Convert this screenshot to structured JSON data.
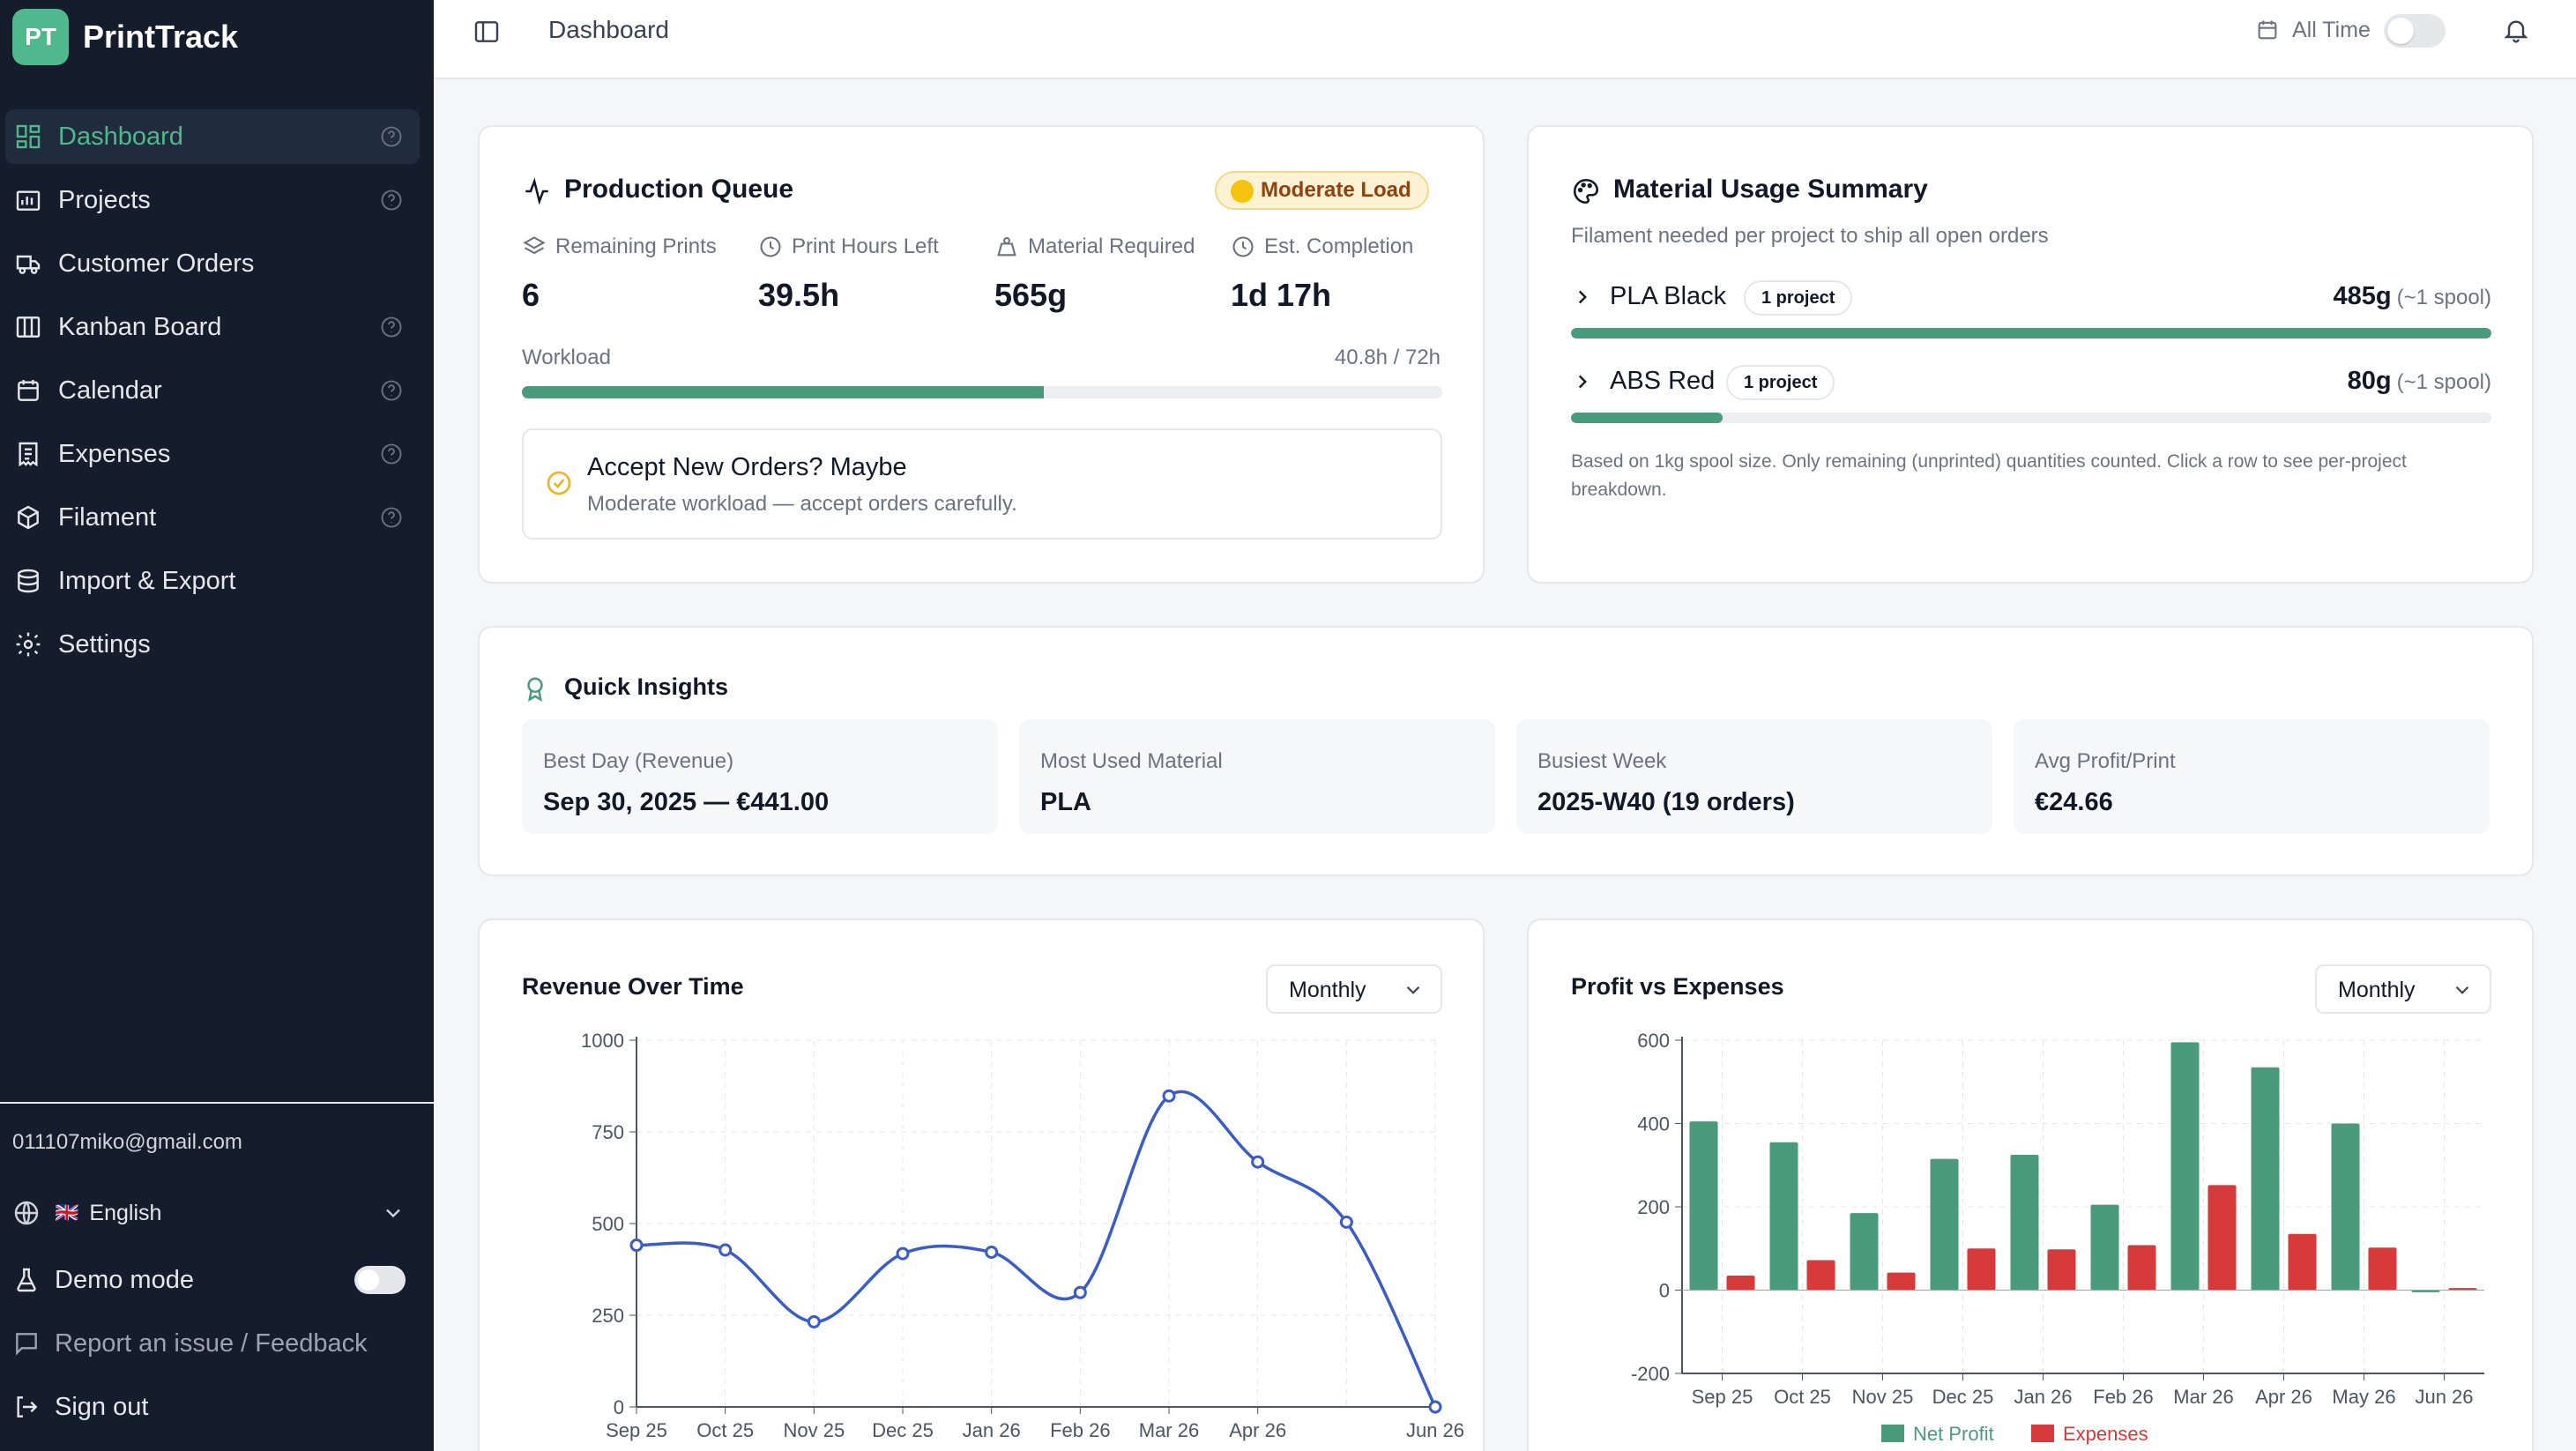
{
  "app": {
    "logo_initials": "PT",
    "name": "PrintTrack"
  },
  "sidebar": {
    "items": [
      {
        "label": "Dashboard",
        "icon": "dashboard-icon",
        "help": true,
        "active": true
      },
      {
        "label": "Projects",
        "icon": "projects-icon",
        "help": true
      },
      {
        "label": "Customer Orders",
        "icon": "truck-icon",
        "help": false
      },
      {
        "label": "Kanban Board",
        "icon": "kanban-icon",
        "help": true
      },
      {
        "label": "Calendar",
        "icon": "calendar-icon",
        "help": true
      },
      {
        "label": "Expenses",
        "icon": "receipt-icon",
        "help": true
      },
      {
        "label": "Filament",
        "icon": "box-icon",
        "help": true
      },
      {
        "label": "Import & Export",
        "icon": "database-icon",
        "help": false
      },
      {
        "label": "Settings",
        "icon": "gear-icon",
        "help": false
      }
    ],
    "email": "011107miko@gmail.com",
    "language": {
      "flag": "🇬🇧",
      "label": "English"
    },
    "demo_mode": {
      "label": "Demo mode",
      "enabled": false
    },
    "report": "Report an issue / Feedback",
    "sign_out": "Sign out"
  },
  "topbar": {
    "breadcrumb": "Dashboard",
    "range_label": "All Time",
    "range_toggle": false
  },
  "production_queue": {
    "title": "Production Queue",
    "load_badge": "Moderate Load",
    "stats": [
      {
        "label": "Remaining Prints",
        "value": "6",
        "icon": "layers-icon"
      },
      {
        "label": "Print Hours Left",
        "value": "39.5h",
        "icon": "clock-icon"
      },
      {
        "label": "Material Required",
        "value": "565g",
        "icon": "weight-icon"
      },
      {
        "label": "Est. Completion",
        "value": "1d 17h",
        "icon": "clock-icon"
      }
    ],
    "workload_label": "Workload",
    "workload_value": "40.8h / 72h",
    "workload_fraction": 0.567,
    "accept_title": "Accept New Orders? Maybe",
    "accept_desc": "Moderate workload — accept orders carefully."
  },
  "material_usage": {
    "title": "Material Usage Summary",
    "subtitle": "Filament needed per project to ship all open orders",
    "rows": [
      {
        "name": "PLA Black",
        "projects": "1 project",
        "amount": "485g",
        "spools": "(~1 spool)",
        "fraction": 1.0
      },
      {
        "name": "ABS Red",
        "projects": "1 project",
        "amount": "80g",
        "spools": "(~1 spool)",
        "fraction": 0.165
      }
    ],
    "footnote": "Based on 1kg spool size. Only remaining (unprinted) quantities counted. Click a row to see per-project breakdown."
  },
  "quick_insights": {
    "title": "Quick Insights",
    "items": [
      {
        "label": "Best Day (Revenue)",
        "value": "Sep 30, 2025 — €441.00"
      },
      {
        "label": "Most Used Material",
        "value": "PLA"
      },
      {
        "label": "Busiest Week",
        "value": "2025-W40 (19 orders)"
      },
      {
        "label": "Avg Profit/Print",
        "value": "€24.66"
      }
    ]
  },
  "revenue_chart": {
    "title": "Revenue Over Time",
    "period": "Monthly"
  },
  "profit_chart": {
    "title": "Profit vs Expenses",
    "period": "Monthly"
  },
  "colors": {
    "accent": "#4fb88c",
    "profit": "#4a9a7c",
    "expenses": "#d63a3a",
    "line": "#3a5cc5",
    "sidebar_bg": "#151c2c"
  },
  "chart_data": [
    {
      "type": "line",
      "title": "Revenue Over Time",
      "x_ticks": [
        "Sep 25",
        "Oct 25",
        "Nov 25",
        "Dec 25",
        "Jan 26",
        "Feb 26",
        "Mar 26",
        "Apr 26",
        "Jun 26"
      ],
      "x": [
        "Sep 25",
        "Oct 25",
        "Nov 25",
        "Dec 25",
        "Jan 26",
        "Feb 26",
        "Mar 26",
        "Apr 26",
        "May 26",
        "Jun 26"
      ],
      "values": [
        441,
        428,
        232,
        418,
        422,
        312,
        848,
        668,
        504,
        0
      ],
      "ylim": [
        0,
        1000
      ],
      "y_ticks": [
        0,
        250,
        500,
        750,
        1000
      ],
      "grid": true
    },
    {
      "type": "bar",
      "title": "Profit vs Expenses",
      "categories": [
        "Sep 25",
        "Oct 25",
        "Nov 25",
        "Dec 25",
        "Jan 26",
        "Feb 26",
        "Mar 26",
        "Apr 26",
        "May 26",
        "Jun 26"
      ],
      "series": [
        {
          "name": "Net Profit",
          "values": [
            405,
            355,
            185,
            315,
            325,
            205,
            595,
            535,
            400,
            -5
          ]
        },
        {
          "name": "Expenses",
          "values": [
            35,
            72,
            42,
            100,
            98,
            108,
            252,
            135,
            102,
            5
          ]
        }
      ],
      "ylim": [
        -200,
        600
      ],
      "y_ticks": [
        -200,
        0,
        200,
        400,
        600
      ],
      "legend": "bottom",
      "grid": true
    }
  ]
}
